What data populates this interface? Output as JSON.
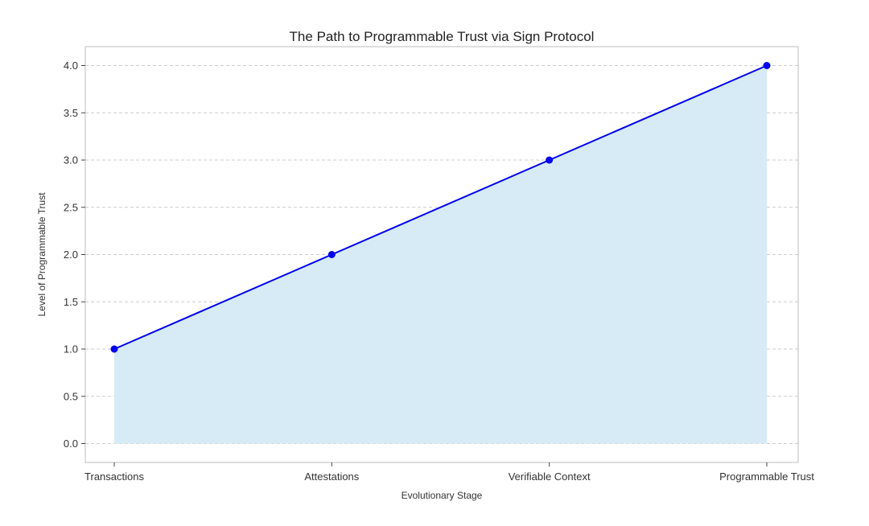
{
  "chart_data": {
    "type": "area",
    "title": "The Path to Programmable Trust via Sign Protocol",
    "xlabel": "Evolutionary Stage",
    "ylabel": "Level of Programmable Trust",
    "categories": [
      "Transactions",
      "Attestations",
      "Verifiable Context",
      "Programmable Trust"
    ],
    "series": [
      {
        "values": [
          1.0,
          2.0,
          3.0,
          4.0
        ]
      }
    ],
    "ylim": [
      -0.2,
      4.2
    ],
    "yticks": [
      0.0,
      0.5,
      1.0,
      1.5,
      2.0,
      2.5,
      3.0,
      3.5,
      4.0
    ],
    "ytick_labels": [
      "0.0",
      "0.5",
      "1.0",
      "1.5",
      "2.0",
      "2.5",
      "3.0",
      "3.5",
      "4.0"
    ],
    "grid": true,
    "line_color": "#0000ee",
    "marker_color": "#0000ee",
    "fill_color": "#d6ebf5"
  }
}
